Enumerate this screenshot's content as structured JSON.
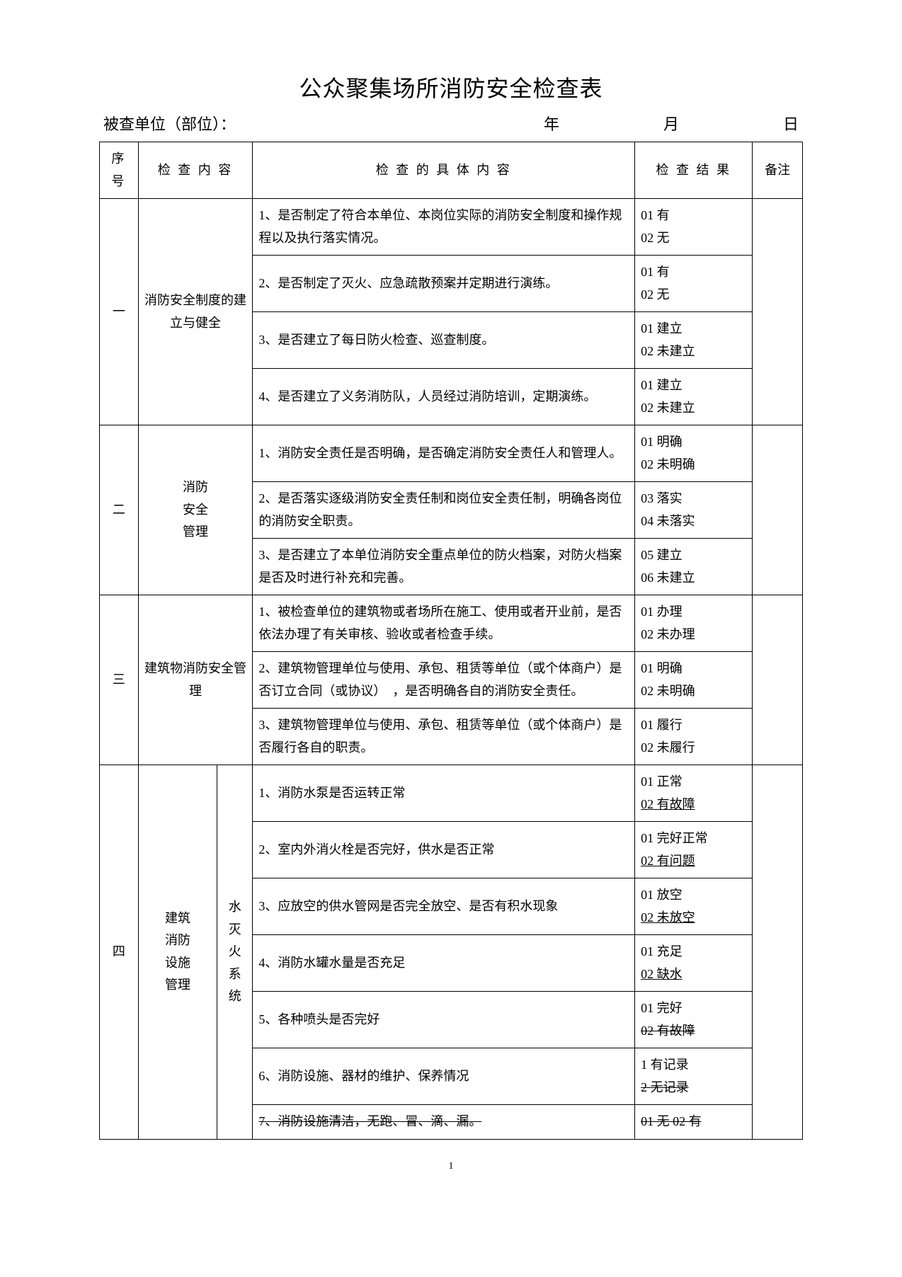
{
  "title": "公众聚集场所消防安全检查表",
  "meta": {
    "unit_label": "被查单位（部位）：",
    "date_y": "年",
    "date_m": "月",
    "date_d": "日"
  },
  "headers": {
    "seq": "序号",
    "content": "检 查 内 容",
    "detail": "检 查 的 具 体 内 容",
    "result": "检 查 结 果",
    "note": "备注"
  },
  "s1": {
    "seq": "一",
    "cat": "消防安全制度的建立与健全",
    "r1": {
      "d": "1、是否制定了符合本单位、本岗位实际的消防安全制度和操作规程以及执行落实情况。",
      "res": "01 有\n02 无"
    },
    "r2": {
      "d": "2、是否制定了灭火、应急疏散预案并定期进行演练。",
      "res": "01 有\n02 无"
    },
    "r3": {
      "d": "3、是否建立了每日防火检查、巡查制度。",
      "res": "01 建立\n02 未建立"
    },
    "r4": {
      "d": "4、是否建立了义务消防队，人员经过消防培训，定期演练。",
      "res": "01 建立\n02 未建立"
    }
  },
  "s2": {
    "seq": "二",
    "cat": "消防\n安全\n管理",
    "r1": {
      "d": "1、消防安全责任是否明确，是否确定消防安全责任人和管理人。",
      "res": "01  明确\n02  未明确"
    },
    "r2": {
      "d": "2、是否落实逐级消防安全责任制和岗位安全责任制，明确各岗位的消防安全职责。",
      "res": "03  落实\n04  未落实"
    },
    "r3": {
      "d": "3、是否建立了本单位消防安全重点单位的防火档案，对防火档案是否及时进行补充和完善。",
      "res": "05  建立\n06  未建立"
    }
  },
  "s3": {
    "seq": "三",
    "cat": "建筑物消防安全管理",
    "r1": {
      "d": "1、被检查单位的建筑物或者场所在施工、使用或者开业前，是否依法办理了有关审核、验收或者检查手续。",
      "res": "01 办理\n02 未办理"
    },
    "r2": {
      "d": "2、建筑物管理单位与使用、承包、租赁等单位（或个体商户）是否订立合同（或协议）　，是否明确各自的消防安全责任。",
      "res": "01 明确\n02 未明确"
    },
    "r3": {
      "d": "3、建筑物管理单位与使用、承包、租赁等单位（或个体商户）是否履行各自的职责。",
      "res": "01 履行\n02 未履行"
    }
  },
  "s4": {
    "seq": "四",
    "cat": "建筑\n消防\n设施\n管理",
    "sub": "水\n灭\n火\n系\n统",
    "r1": {
      "d": "1、消防水泵是否运转正常",
      "res1": "01 正常",
      "res2": "02 有故障"
    },
    "r2": {
      "d": "2、室内外消火栓是否完好，供水是否正常",
      "res1": "01 完好正常",
      "res2": "02 有问题"
    },
    "r3": {
      "d": "3、应放空的供水管网是否完全放空、是否有积水现象",
      "res1": "01 放空",
      "res2": "02 未放空"
    },
    "r4": {
      "d": "4、消防水罐水量是否充足",
      "res1": "01 充足",
      "res2": "02 缺水"
    },
    "r5": {
      "d": "5、各种喷头是否完好",
      "res1": "01 完好",
      "res2": "02 有故障"
    },
    "r6": {
      "d": "6、消防设施、器材的维护、保养情况",
      "res1": "1 有记录",
      "res2": "2 无记录"
    },
    "r7": {
      "d": "7、消防设施清洁，无跑、冒、滴、漏。",
      "res": "01 无 02 有"
    }
  },
  "page_no": "1"
}
